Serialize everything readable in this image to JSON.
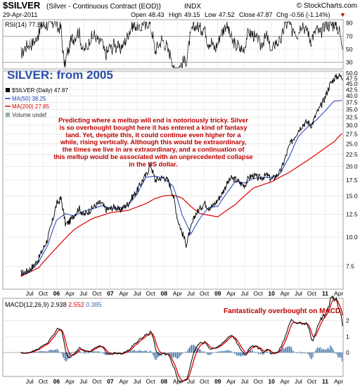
{
  "header": {
    "symbol": "$SILVER",
    "description": "(Silver - Continuous Contract (EOD))",
    "exchange": "INDX",
    "date": "29-Apr-2011",
    "open_label": "Open",
    "open": "48.43",
    "high_label": "High",
    "high": "49.15",
    "low_label": "Low",
    "low": "47.52",
    "close_label": "Close",
    "close": "47.87",
    "chg_label": "Chg",
    "chg": "-0.56 (-1.14%)",
    "arrow": "▼",
    "brand": "© StockCharts.com"
  },
  "colors": {
    "price": "#000000",
    "ma50": "#1f3fbf",
    "ma200": "#e00000",
    "rsi_fill": "#8fa78f",
    "macd_hist": "#3a6fa8",
    "annotation": "#c00000",
    "overlay_title": "#2a4ea8",
    "background": "#ffffff",
    "grid": "#d0d0d0"
  },
  "chart_data": [
    {
      "type": "line",
      "panel": "rsi",
      "label": "RSI(14)",
      "last_value": "77.85",
      "ylim": [
        20,
        95
      ],
      "y_ticks": [
        30,
        50,
        70,
        90
      ],
      "levels": [
        30,
        70
      ]
    },
    {
      "type": "line",
      "panel": "price",
      "title": "SILVER: from 2005",
      "scale": "log",
      "ylim": [
        6.0,
        51.0
      ],
      "y_ticks": [
        7.5,
        10.0,
        12.5,
        15.0,
        17.5,
        20.0,
        22.5,
        25.0,
        27.5,
        30.0,
        32.5,
        35.0,
        37.5,
        40.0,
        42.5,
        45.0,
        47.5,
        50.0
      ],
      "x_labels": [
        "Jul",
        "Oct",
        "06",
        "Apr",
        "Jul",
        "Oct",
        "07",
        "Apr",
        "Jul",
        "Oct",
        "08",
        "Apr",
        "Jul",
        "Oct",
        "09",
        "Apr",
        "Jul",
        "Oct",
        "10",
        "Apr",
        "Jul",
        "Oct",
        "11",
        "Apr"
      ],
      "x_label_months": [
        6,
        9,
        12,
        15,
        18,
        21,
        24,
        27,
        30,
        33,
        36,
        39,
        42,
        45,
        48,
        51,
        54,
        57,
        60,
        63,
        66,
        69,
        72,
        75
      ],
      "bold_labels": [
        "06",
        "07",
        "08",
        "09",
        "10",
        "11"
      ],
      "months_total": 76,
      "legend": [
        {
          "label": "$SILVER (Daily)",
          "value": "47.87"
        },
        {
          "label": "MA(50)",
          "value": "38.25"
        },
        {
          "label": "MA(200)",
          "value": "27.85"
        },
        {
          "label": "Volume undef",
          "value": ""
        }
      ],
      "series": [
        {
          "name": "$SILVER",
          "x": [
            4,
            5,
            6,
            7,
            8,
            9,
            10,
            11,
            12,
            13,
            14,
            15,
            16,
            17,
            18,
            19,
            20,
            21,
            22,
            23,
            24,
            25,
            26,
            27,
            28,
            29,
            30,
            31,
            32,
            33,
            34,
            35,
            36,
            37,
            38,
            39,
            40,
            41,
            42,
            43,
            44,
            45,
            46,
            47,
            48,
            49,
            50,
            51,
            52,
            53,
            54,
            55,
            56,
            57,
            58,
            59,
            60,
            61,
            62,
            63,
            64,
            65,
            66,
            67,
            68,
            69,
            70,
            71,
            72,
            73,
            74,
            75,
            75.9
          ],
          "y": [
            7.0,
            7.1,
            7.3,
            7.6,
            8.1,
            8.9,
            9.8,
            11.5,
            13.8,
            14.6,
            11.3,
            11.7,
            12.5,
            13.3,
            12.4,
            12.8,
            13.3,
            13.8,
            14.0,
            13.1,
            13.2,
            13.5,
            13.0,
            13.4,
            13.9,
            14.9,
            15.8,
            17.2,
            18.4,
            20.4,
            17.5,
            17.8,
            18.0,
            17.3,
            15.2,
            12.0,
            10.5,
            9.3,
            10.9,
            12.5,
            13.2,
            14.0,
            13.4,
            13.6,
            14.4,
            15.4,
            16.8,
            17.8,
            17.6,
            17.0,
            16.6,
            18.0,
            18.3,
            17.9,
            18.0,
            18.4,
            17.6,
            18.2,
            19.0,
            21.5,
            24.5,
            26.5,
            28.6,
            30.2,
            31.0,
            30.0,
            33.5,
            36.0,
            39.5,
            44.5,
            47.5,
            48.8,
            47.9
          ]
        },
        {
          "name": "MA(50)",
          "x": [
            4,
            6,
            8,
            10,
            12,
            14,
            16,
            18,
            20,
            22,
            24,
            26,
            28,
            30,
            32,
            34,
            36,
            38,
            40,
            42,
            44,
            46,
            48,
            50,
            52,
            54,
            56,
            58,
            60,
            62,
            64,
            66,
            68,
            70,
            72,
            74,
            75.9
          ],
          "y": [
            6.9,
            7.1,
            7.8,
            9.2,
            11.8,
            12.6,
            12.3,
            12.9,
            13.2,
            13.6,
            13.3,
            13.3,
            13.7,
            15.2,
            18.0,
            18.2,
            17.8,
            16.5,
            12.5,
            10.3,
            12.0,
            13.4,
            13.5,
            15.4,
            17.3,
            17.0,
            17.8,
            17.9,
            18.0,
            18.7,
            22.0,
            26.8,
            29.4,
            31.5,
            34.5,
            38.0,
            38.25
          ]
        },
        {
          "name": "MA(200)",
          "x": [
            4,
            8,
            12,
            16,
            20,
            24,
            28,
            32,
            34,
            36,
            38,
            40,
            42,
            44,
            48,
            52,
            56,
            60,
            64,
            66,
            68,
            70,
            72,
            74,
            75.9
          ],
          "y": [
            6.8,
            7.4,
            9.0,
            10.8,
            12.0,
            12.7,
            13.0,
            13.9,
            14.6,
            15.0,
            15.1,
            14.7,
            13.5,
            12.6,
            12.2,
            13.8,
            16.2,
            17.2,
            18.9,
            20.0,
            21.2,
            22.5,
            24.0,
            25.5,
            27.85
          ]
        }
      ],
      "annotation": "Predicting where a meltup will end is notoriously tricky. Silver is so overbought bought here it has entered a kind of fantasy land. Yet, despite this, it could continue even higher for a while, rising vertically. Although this would be extraordinary, the times we live in are extraordinary, and a continuation of this meltup would be associated with an unprecedented collapse in the US dollar."
    },
    {
      "type": "line",
      "panel": "macd",
      "label": "MACD(12,26,9)",
      "values": [
        "2.938",
        "2.552",
        "0.385"
      ],
      "ylim": [
        -1.5,
        3.4
      ],
      "y_ticks": [
        0,
        1,
        2
      ],
      "annotation": "Fantastically overbought on MACD"
    }
  ]
}
